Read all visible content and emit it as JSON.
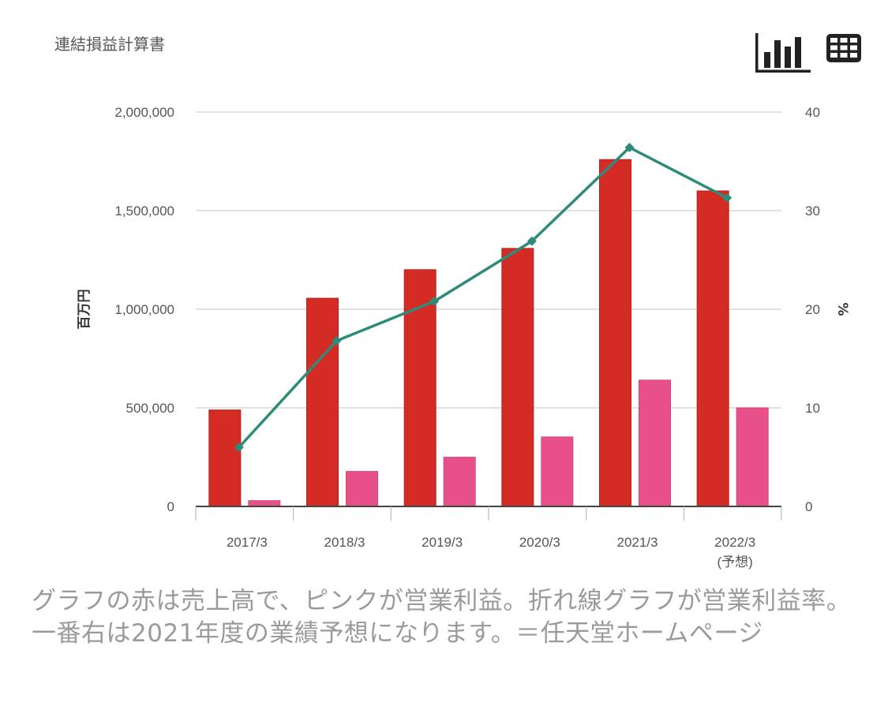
{
  "header": {
    "title": "連結損益計算書",
    "views": [
      {
        "name": "chart-view",
        "icon": "bar-chart-icon",
        "active": true
      },
      {
        "name": "table-view",
        "icon": "table-grid-icon",
        "active": false
      }
    ]
  },
  "caption": "グラフの赤は売上高で、ピンクが営業利益。折れ線グラフが営業利益率。一番右は2021年度の業績予想になります。＝任天堂ホームページ",
  "colors": {
    "sales": "#d52b25",
    "operating_profit": "#e8508a",
    "margin_line": "#2e8b7a",
    "grid": "#d9d9d9",
    "axis": "#444444"
  },
  "chart_data": {
    "type": "bar",
    "title": "連結損益計算書",
    "categories": [
      "2017/3",
      "2018/3",
      "2019/3",
      "2020/3",
      "2021/3",
      "2022/3"
    ],
    "category_sublabels": [
      "",
      "",
      "",
      "",
      "",
      "(予想)"
    ],
    "series": [
      {
        "name": "売上高",
        "type": "bar",
        "axis": "left",
        "color": "#d52b25",
        "values": [
          489095,
          1055682,
          1200560,
          1308519,
          1758910,
          1600000
        ]
      },
      {
        "name": "営業利益",
        "type": "bar",
        "axis": "left",
        "color": "#e8508a",
        "values": [
          29362,
          177557,
          249701,
          352370,
          640634,
          500000
        ]
      },
      {
        "name": "営業利益率",
        "type": "line",
        "axis": "right",
        "color": "#2e8b7a",
        "values": [
          6.0,
          16.8,
          20.8,
          26.9,
          36.4,
          31.3
        ]
      }
    ],
    "ylabel": "百万円",
    "ylim": [
      0,
      2000000
    ],
    "yticks": [
      0,
      500000,
      1000000,
      1500000,
      2000000
    ],
    "ytick_labels": [
      "0",
      "500,000",
      "1,000,000",
      "1,500,000",
      "2,000,000"
    ],
    "y2label": "%",
    "y2lim": [
      0,
      40
    ],
    "y2ticks": [
      0,
      10,
      20,
      30,
      40
    ],
    "y2tick_labels": [
      "0",
      "10",
      "20",
      "30",
      "40"
    ],
    "xlabel": "",
    "grid": true,
    "legend": "none"
  }
}
